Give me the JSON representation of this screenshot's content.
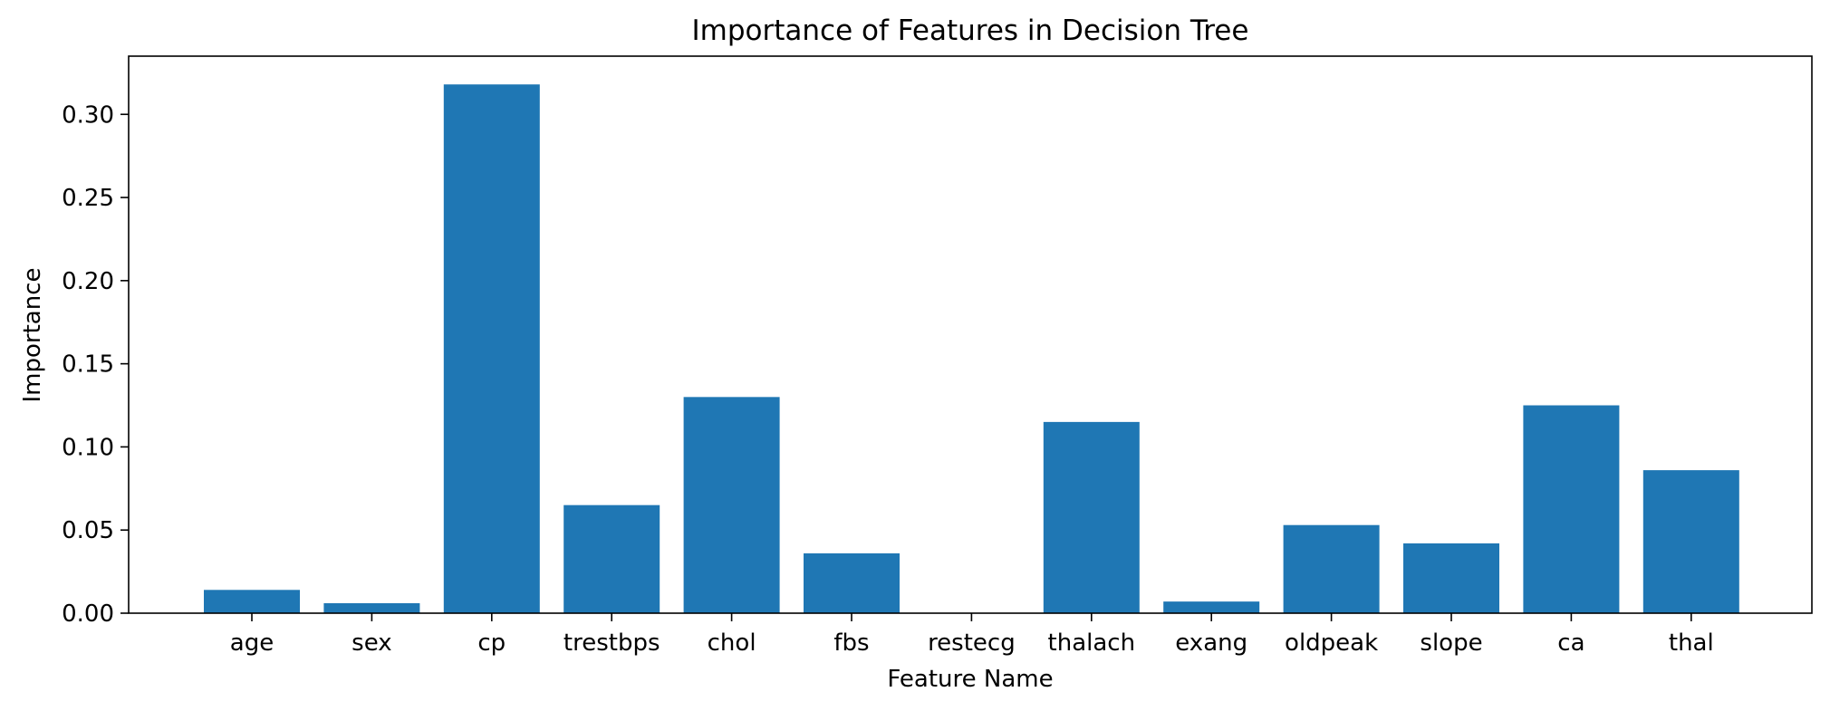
{
  "chart_data": {
    "type": "bar",
    "title": "Importance of Features in Decision Tree",
    "xlabel": "Feature Name",
    "ylabel": "Importance",
    "categories": [
      "age",
      "sex",
      "cp",
      "trestbps",
      "chol",
      "fbs",
      "restecg",
      "thalach",
      "exang",
      "oldpeak",
      "slope",
      "ca",
      "thal"
    ],
    "values": [
      0.014,
      0.006,
      0.318,
      0.065,
      0.13,
      0.036,
      0.0,
      0.115,
      0.007,
      0.053,
      0.042,
      0.125,
      0.086
    ],
    "ylim": [
      0,
      0.335
    ],
    "yticks": [
      "0.00",
      "0.05",
      "0.10",
      "0.15",
      "0.20",
      "0.25",
      "0.30"
    ],
    "grid": false,
    "bar_color": "#1f77b4"
  }
}
